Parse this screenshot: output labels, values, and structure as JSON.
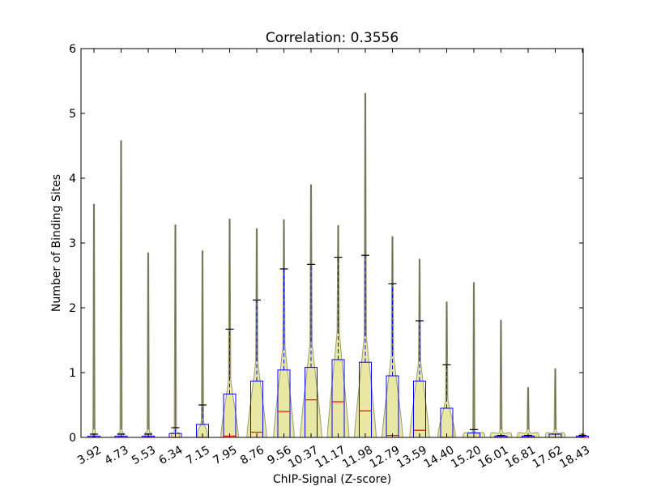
{
  "chart_data": {
    "type": "violin-box",
    "title": "Correlation: 0.3556",
    "xlabel": "ChIP-Signal (Z-score)",
    "ylabel": "Number of Binding Sites",
    "ylim": [
      0,
      6
    ],
    "yticks": [
      "0",
      "1",
      "2",
      "3",
      "4",
      "5",
      "6"
    ],
    "categories": [
      "3.92",
      "4.73",
      "5.53",
      "6.34",
      "7.15",
      "7.95",
      "8.76",
      "9.56",
      "10.37",
      "11.17",
      "11.98",
      "12.79",
      "13.59",
      "14.40",
      "15.20",
      "16.01",
      "16.81",
      "17.62",
      "18.43"
    ],
    "violin_max": [
      3.6,
      4.58,
      2.85,
      3.28,
      2.88,
      3.37,
      3.22,
      3.36,
      3.9,
      3.27,
      5.31,
      3.1,
      2.75,
      2.09,
      2.39,
      1.81,
      0.77,
      1.06,
      0.05
    ],
    "violin_halfwidth": [
      0.06,
      0.09,
      0.12,
      0.16,
      0.2,
      0.34,
      0.38,
      0.4,
      0.42,
      0.42,
      0.42,
      0.4,
      0.38,
      0.34,
      0.42,
      0.42,
      0.42,
      0.38,
      0.1
    ],
    "box_q1": [
      0,
      0,
      0,
      0,
      0,
      0,
      0,
      0,
      0,
      0,
      0,
      0,
      0,
      0,
      0,
      0,
      0,
      0,
      0
    ],
    "box_median": [
      0,
      0,
      0,
      0,
      0,
      0.02,
      0.08,
      0.4,
      0.58,
      0.55,
      0.41,
      0.03,
      0.11,
      0,
      0,
      0,
      0,
      0,
      0
    ],
    "box_q3": [
      0.02,
      0.02,
      0.02,
      0.06,
      0.2,
      0.67,
      0.87,
      1.04,
      1.08,
      1.2,
      1.16,
      0.95,
      0.87,
      0.45,
      0.07,
      0.02,
      0.02,
      0.05,
      0.02
    ],
    "whisker_high": [
      0.05,
      0.05,
      0.05,
      0.15,
      0.5,
      1.67,
      2.12,
      2.6,
      2.67,
      2.78,
      2.81,
      2.37,
      1.8,
      1.12,
      0.12,
      0.03,
      0.03,
      0.05,
      0.03
    ],
    "colors": {
      "violin_fill": "#e8e8a4",
      "violin_edge": "#9c9c76",
      "spike": "#6e6e58",
      "box": "#0000ff",
      "median": "#ff0000",
      "whisker": "#0000ff",
      "cap": "#000000"
    },
    "grid": false
  }
}
